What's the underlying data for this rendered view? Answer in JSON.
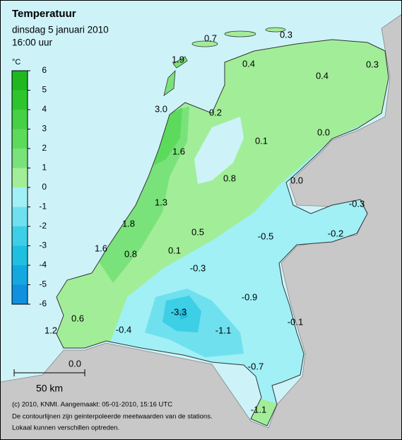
{
  "header": {
    "title": "Temperatuur",
    "date": "dinsdag 5 januari 2010",
    "time": "16:00 uur"
  },
  "legend": {
    "unit": "°C",
    "ticks": [
      6,
      5,
      4,
      3,
      2,
      1,
      0,
      -1,
      -2,
      -3,
      -4,
      -5,
      -6
    ],
    "colors": [
      "#1fb81f",
      "#2ec42e",
      "#45d045",
      "#5cda5c",
      "#7ae27a",
      "#a2ee98",
      "#a0f0f6",
      "#6fe0ee",
      "#3dcfe6",
      "#1fbfe0",
      "#14a8e0",
      "#1090de"
    ]
  },
  "stations": [
    "0.7",
    "0.3",
    "1.9",
    "0.4",
    "0.3",
    "0.4",
    "3.0",
    "0.2",
    "0.0",
    "0.1",
    "1.6",
    "0.8",
    "0.0",
    "-0.3",
    "1.3",
    "1.8",
    "0.5",
    "-0.2",
    "-0.5",
    "1.6",
    "0.8",
    "0.1",
    "-0.3",
    "-0.9",
    "-3.3",
    "0.6",
    "-0.1",
    "-0.4",
    "1.2",
    "-1.1",
    "0.0",
    "-0.7",
    "-1.1"
  ],
  "scale": "50 km",
  "footer": [
    "(c) 2010, KNMI. Aangemaakt: 05-01-2010, 15:16 UTC",
    "De contourlijnen zijn geinterpoleerde meetwaarden van de stations.",
    "Lokaal kunnen verschillen optreden."
  ]
}
